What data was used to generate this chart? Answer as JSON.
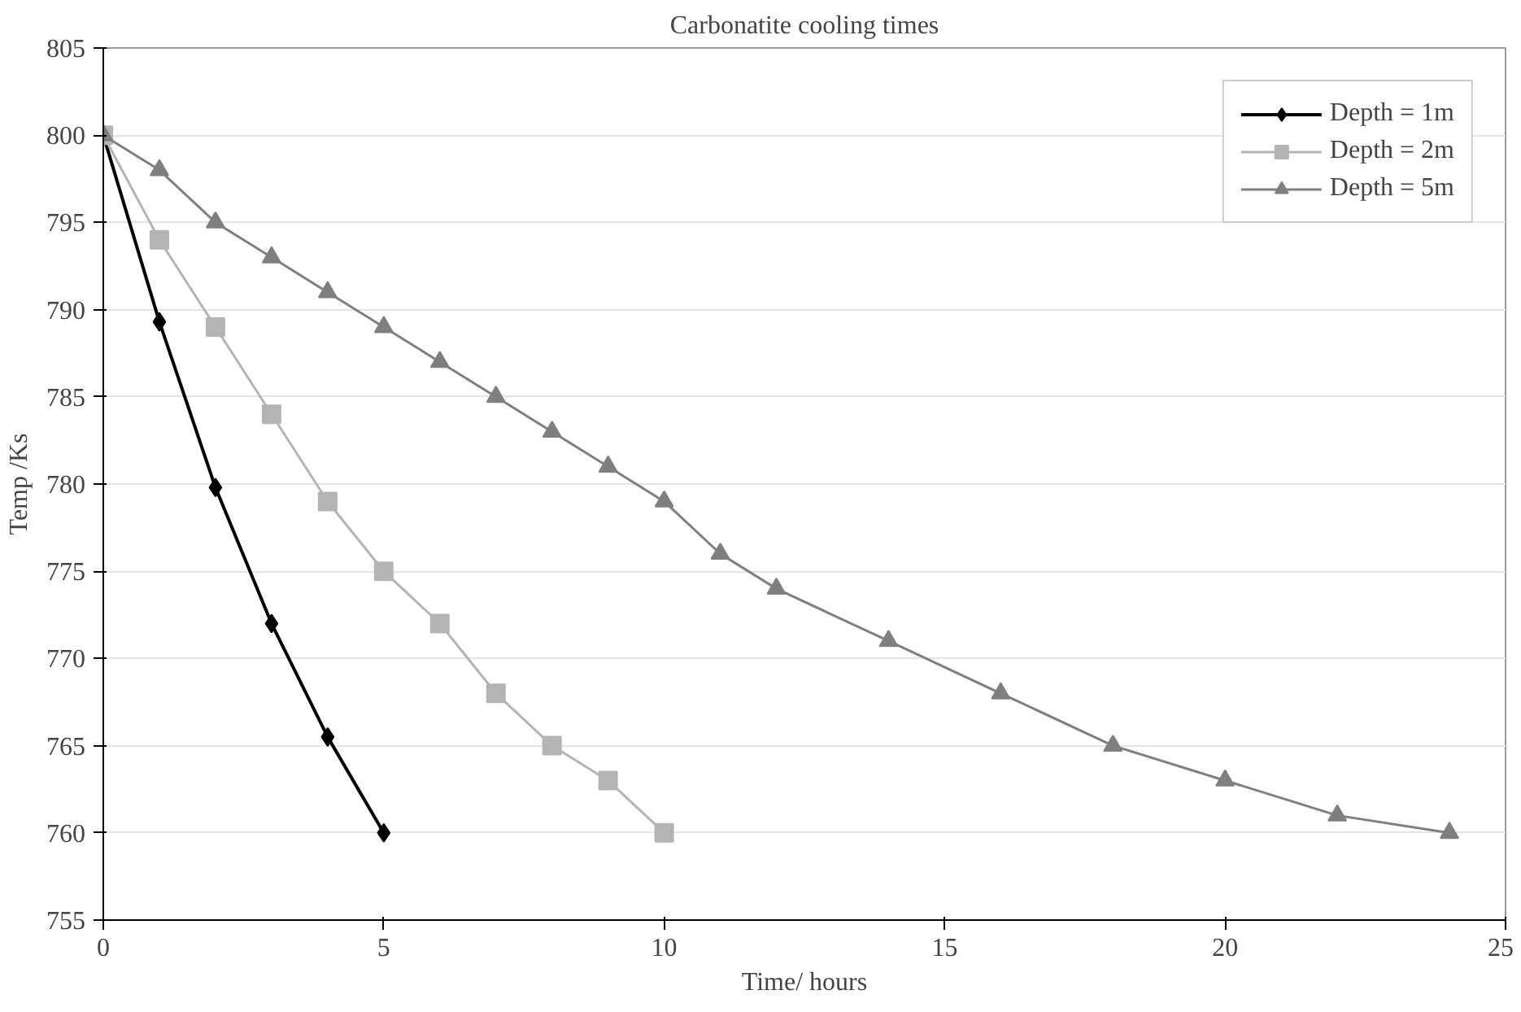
{
  "chart_data": {
    "type": "line",
    "title": "Carbonatite cooling times",
    "xlabel": "Time/ hours",
    "ylabel": "Temp /Ks",
    "xlim": [
      0,
      25
    ],
    "xticks": [
      0,
      5,
      10,
      15,
      20,
      25
    ],
    "ylim": [
      755,
      805
    ],
    "yticks": [
      755,
      760,
      765,
      770,
      775,
      780,
      785,
      790,
      795,
      800,
      805
    ],
    "grid": "y",
    "legend": "top right",
    "series": [
      {
        "name": "Depth = 1m",
        "color": "#000000",
        "marker": "diamond",
        "x": [
          0,
          1,
          2,
          3,
          4,
          5
        ],
        "values": [
          800,
          789.3,
          779.8,
          772,
          765.5,
          760
        ]
      },
      {
        "name": "Depth = 2m",
        "color": "#b4b4b4",
        "marker": "square",
        "x": [
          0,
          1,
          2,
          3,
          4,
          5,
          6,
          7,
          8,
          9,
          10
        ],
        "values": [
          800,
          794,
          789,
          784,
          779,
          775,
          772,
          768,
          765,
          763,
          760
        ]
      },
      {
        "name": "Depth = 5m",
        "color": "#7f7f7f",
        "marker": "triangle",
        "x": [
          0,
          1,
          2,
          3,
          4,
          5,
          6,
          7,
          8,
          9,
          10,
          11,
          12,
          14,
          16,
          18,
          20,
          22,
          24
        ],
        "values": [
          800,
          798,
          795,
          793,
          791,
          789,
          787,
          785,
          783,
          781,
          779,
          776,
          774,
          771,
          768,
          765,
          763,
          761,
          760
        ]
      }
    ]
  }
}
